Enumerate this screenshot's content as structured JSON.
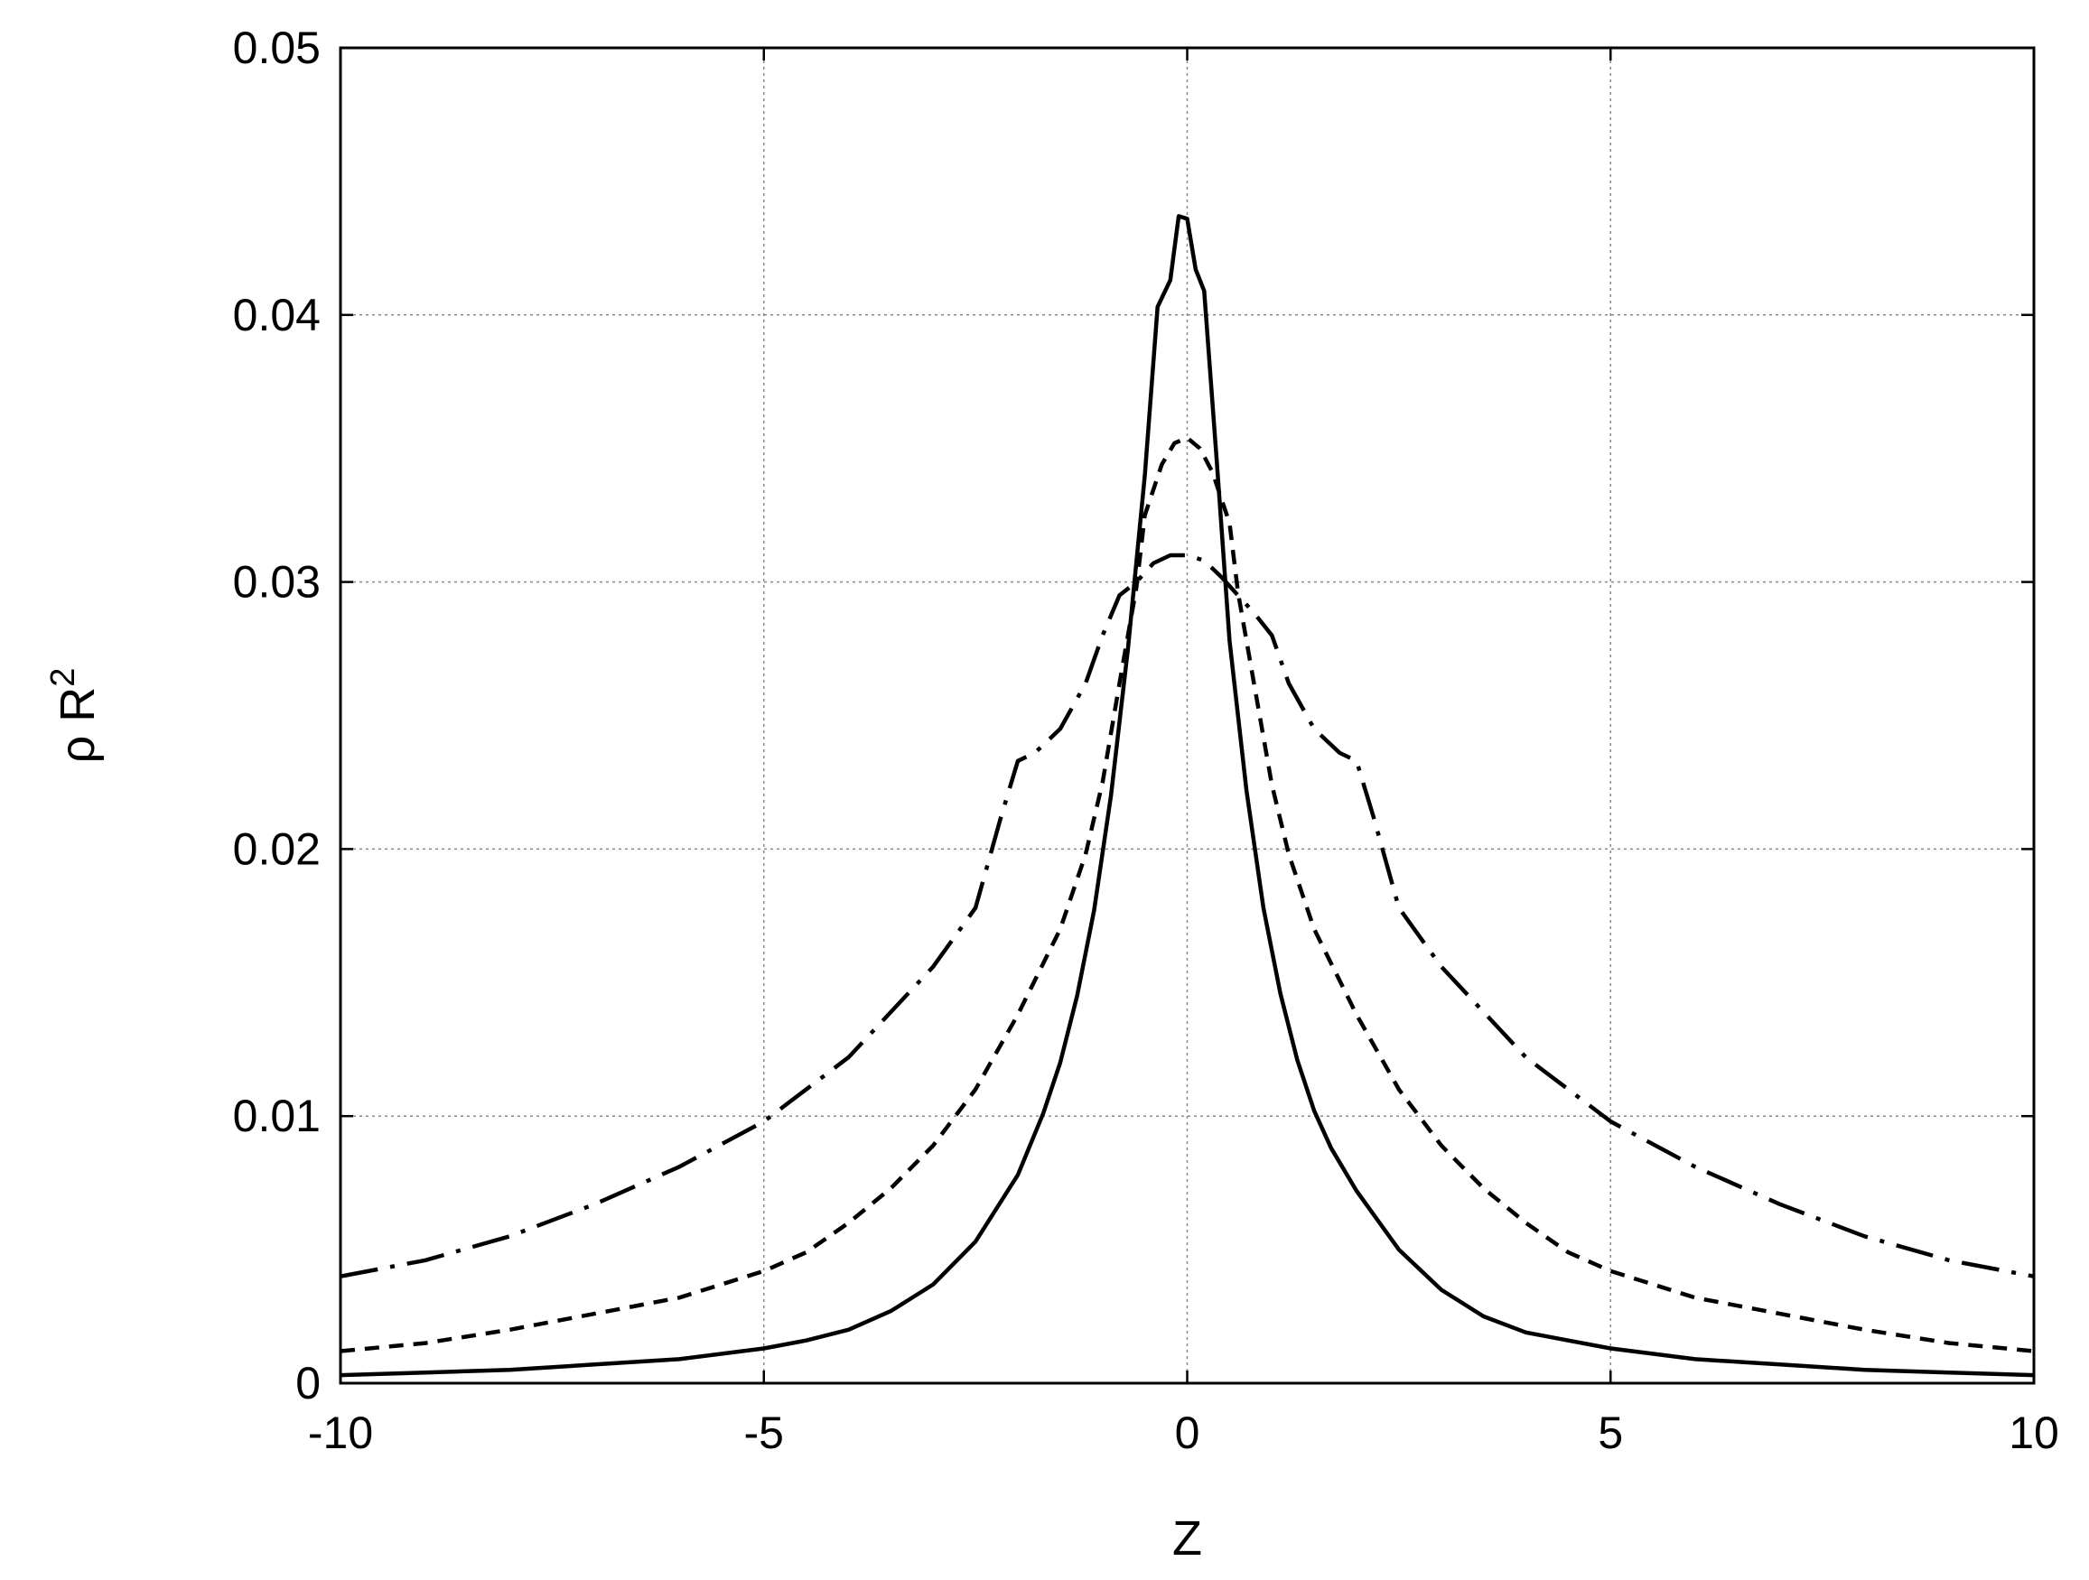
{
  "chart_data": {
    "type": "line",
    "xlabel": "Z",
    "ylabel_base": "ρ R",
    "ylabel_sup": "2",
    "xlim": [
      -10,
      10
    ],
    "ylim": [
      0,
      0.05
    ],
    "xticks": [
      -10,
      -5,
      0,
      5,
      10
    ],
    "xtick_labels": [
      "-10",
      "-5",
      "0",
      "5",
      "10"
    ],
    "yticks": [
      0,
      0.01,
      0.02,
      0.03,
      0.04,
      0.05
    ],
    "ytick_labels": [
      "0",
      "0.01",
      "0.02",
      "0.03",
      "0.04",
      "0.05"
    ],
    "grid": true,
    "legend": "none",
    "series": [
      {
        "style": "solid",
        "x": [
          -10,
          -9,
          -8,
          -7,
          -6,
          -5,
          -4.5,
          -4,
          -3.5,
          -3,
          -2.5,
          -2,
          -1.7,
          -1.5,
          -1.3,
          -1.1,
          -0.9,
          -0.7,
          -0.5,
          -0.35,
          -0.2,
          -0.1,
          0,
          0.1,
          0.2,
          0.35,
          0.5,
          0.7,
          0.9,
          1.1,
          1.3,
          1.5,
          1.7,
          2,
          2.5,
          3,
          3.5,
          4,
          4.5,
          5,
          6,
          7,
          8,
          9,
          10
        ],
        "y": [
          0.0003,
          0.0004,
          0.0005,
          0.0007,
          0.0009,
          0.0013,
          0.0016,
          0.002,
          0.0027,
          0.0037,
          0.0053,
          0.0078,
          0.0101,
          0.012,
          0.0145,
          0.0177,
          0.022,
          0.0275,
          0.034,
          0.0403,
          0.0413,
          0.0437,
          0.0436,
          0.0417,
          0.0409,
          0.0345,
          0.0278,
          0.0222,
          0.0178,
          0.0146,
          0.0121,
          0.0102,
          0.0088,
          0.0072,
          0.005,
          0.0035,
          0.0025,
          0.0019,
          0.0016,
          0.0013,
          0.0009,
          0.0007,
          0.0005,
          0.0004,
          0.0003
        ]
      },
      {
        "style": "dashed",
        "x": [
          -10,
          -9,
          -8,
          -7,
          -6,
          -5,
          -4.5,
          -4,
          -3.5,
          -3,
          -2.5,
          -2,
          -1.5,
          -1.2,
          -1,
          -0.8,
          -0.6,
          -0.5,
          -0.3,
          -0.15,
          0,
          0.15,
          0.3,
          0.5,
          0.6,
          0.8,
          1,
          1.2,
          1.5,
          2,
          2.5,
          3,
          3.5,
          4,
          4.5,
          5,
          6,
          7,
          8,
          9,
          10
        ],
        "y": [
          0.0012,
          0.0015,
          0.002,
          0.0026,
          0.0032,
          0.0042,
          0.0049,
          0.006,
          0.0073,
          0.0089,
          0.011,
          0.0138,
          0.017,
          0.0198,
          0.0225,
          0.0262,
          0.0298,
          0.0325,
          0.0344,
          0.0352,
          0.0354,
          0.035,
          0.0341,
          0.0322,
          0.0296,
          0.026,
          0.0224,
          0.0198,
          0.017,
          0.0138,
          0.011,
          0.0089,
          0.0073,
          0.006,
          0.0049,
          0.0042,
          0.0032,
          0.0026,
          0.002,
          0.0015,
          0.0012
        ]
      },
      {
        "style": "dash-dot",
        "x": [
          -10,
          -9,
          -8,
          -7,
          -6,
          -5,
          -4,
          -3,
          -2.5,
          -2.2,
          -2,
          -1.8,
          -1.5,
          -1.2,
          -1,
          -0.8,
          -0.6,
          -0.4,
          -0.2,
          0,
          0.2,
          0.4,
          0.6,
          0.8,
          1,
          1.2,
          1.5,
          1.8,
          2,
          2.2,
          2.5,
          3,
          4,
          5,
          6,
          7,
          8,
          9,
          10
        ],
        "y": [
          0.004,
          0.0046,
          0.0055,
          0.0067,
          0.0081,
          0.0098,
          0.0122,
          0.0156,
          0.0178,
          0.0212,
          0.0233,
          0.0236,
          0.0245,
          0.0262,
          0.028,
          0.0295,
          0.03,
          0.0307,
          0.031,
          0.031,
          0.0308,
          0.0302,
          0.0295,
          0.0288,
          0.028,
          0.0262,
          0.0245,
          0.0236,
          0.0233,
          0.0212,
          0.0178,
          0.0156,
          0.0122,
          0.0098,
          0.0081,
          0.0067,
          0.0055,
          0.0046,
          0.004
        ]
      }
    ]
  }
}
